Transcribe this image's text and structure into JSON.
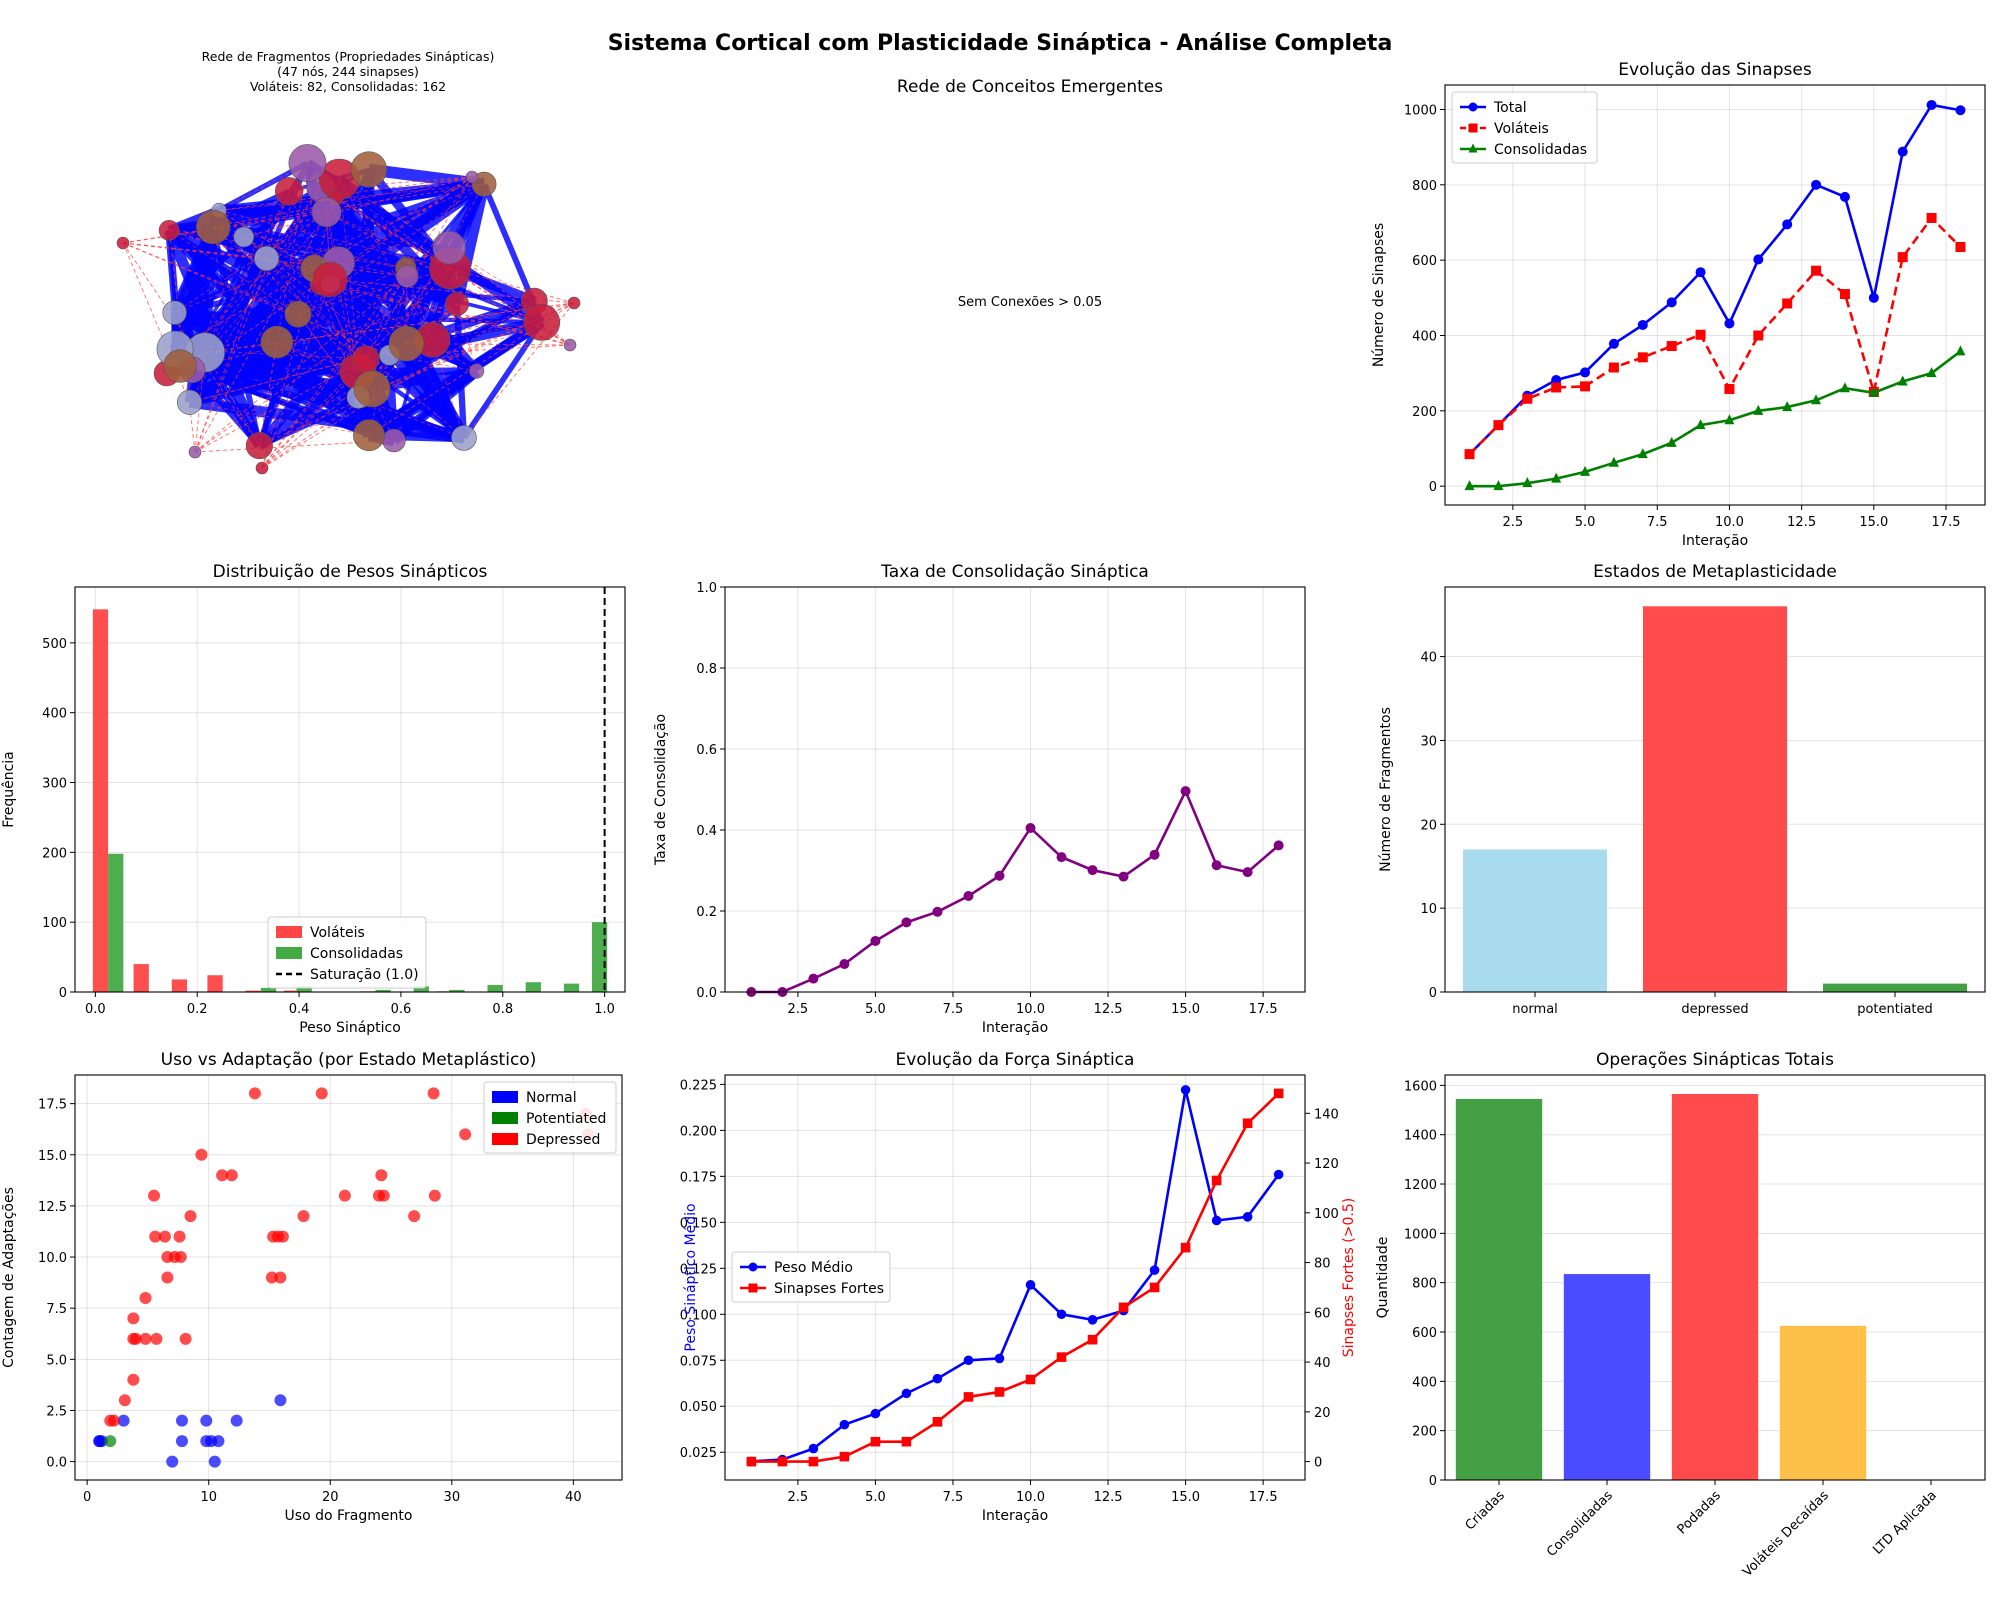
{
  "figure": {
    "title": "Sistema Cortical com Plasticidade Sináptica - Análise Completa"
  },
  "network": {
    "title_line1": "Rede de Fragmentos (Propriedades Sinápticas)",
    "title_line2": "(47 nós, 244 sinapses)",
    "title_line3": "Voláteis: 82, Consolidadas: 162",
    "colors": {
      "strong_edge": "#0000ff",
      "weak_edge": "#ff3b3b"
    }
  },
  "concepts": {
    "title": "Rede de Conceitos Emergentes",
    "message": "Sem Conexões > 0.05"
  },
  "chart_data": [
    {
      "id": "synapse_evolution",
      "type": "line",
      "title": "Evolução das Sinapses",
      "xlabel": "Interação",
      "ylabel": "Número de Sinapses",
      "xlim": [
        0.15,
        18.85
      ],
      "ylim": [
        -50,
        1065
      ],
      "xticks": [
        2.5,
        5.0,
        7.5,
        10.0,
        12.5,
        15.0,
        17.5
      ],
      "yticks": [
        0,
        200,
        400,
        600,
        800,
        1000
      ],
      "legend_position": "upper-left",
      "x": [
        1,
        2,
        3,
        4,
        5,
        6,
        7,
        8,
        9,
        10,
        11,
        12,
        13,
        14,
        15,
        16,
        17,
        18
      ],
      "series": [
        {
          "name": "Total",
          "color": "#0000ff",
          "marker": "circle",
          "dash": "solid",
          "values": [
            85,
            162,
            240,
            282,
            302,
            378,
            428,
            488,
            568,
            432,
            602,
            695,
            800,
            768,
            500,
            888,
            1012,
            998
          ]
        },
        {
          "name": "Voláteis",
          "color": "#ff0000",
          "marker": "square",
          "dash": "dashed",
          "values": [
            85,
            162,
            232,
            262,
            265,
            315,
            342,
            372,
            402,
            258,
            400,
            485,
            572,
            510,
            250,
            608,
            712,
            635
          ]
        },
        {
          "name": "Consolidadas",
          "color": "#008000",
          "marker": "triangle",
          "dash": "solid",
          "values": [
            0,
            0,
            8,
            20,
            38,
            62,
            85,
            115,
            162,
            175,
            200,
            210,
            228,
            260,
            248,
            278,
            300,
            358
          ]
        }
      ]
    },
    {
      "id": "weight_distribution",
      "type": "bar",
      "title": "Distribuição de Pesos Sinápticos",
      "xlabel": "Peso Sináptico",
      "ylabel": "Frequência",
      "xlim": [
        -0.04,
        1.04
      ],
      "ylim": [
        0,
        580
      ],
      "xticks": [
        0.0,
        0.2,
        0.4,
        0.6,
        0.8,
        1.0
      ],
      "yticks": [
        0,
        100,
        200,
        300,
        400,
        500
      ],
      "bin_width": 0.03,
      "legend_position": "lower-center",
      "series": [
        {
          "name": "Voláteis",
          "color": "#ff4444",
          "bins": [
            [
              0.01,
              548
            ],
            [
              0.09,
              40
            ],
            [
              0.165,
              18
            ],
            [
              0.235,
              24
            ],
            [
              0.31,
              2
            ],
            [
              0.385,
              2
            ],
            [
              0.535,
              1
            ],
            [
              0.685,
              1
            ]
          ]
        },
        {
          "name": "Consolidadas",
          "color": "#44aa44",
          "bins": [
            [
              0.04,
              198
            ],
            [
              0.34,
              6
            ],
            [
              0.41,
              8
            ],
            [
              0.565,
              3
            ],
            [
              0.64,
              8
            ],
            [
              0.71,
              3
            ],
            [
              0.785,
              10
            ],
            [
              0.86,
              14
            ],
            [
              0.935,
              12
            ],
            [
              0.99,
              100
            ]
          ]
        }
      ],
      "reference_line": {
        "name": "Saturação (1.0)",
        "x": 1.0
      }
    },
    {
      "id": "consolidation_rate",
      "type": "line",
      "title": "Taxa de Consolidação Sináptica",
      "xlabel": "Interação",
      "ylabel": "Taxa de Consolidação",
      "xlim": [
        0.15,
        18.85
      ],
      "ylim": [
        0,
        1.0
      ],
      "xticks": [
        2.5,
        5.0,
        7.5,
        10.0,
        12.5,
        15.0,
        17.5
      ],
      "yticks": [
        0.0,
        0.2,
        0.4,
        0.6,
        0.8,
        1.0
      ],
      "color": "#800080",
      "x": [
        1,
        2,
        3,
        4,
        5,
        6,
        7,
        8,
        9,
        10,
        11,
        12,
        13,
        14,
        15,
        16,
        17,
        18
      ],
      "values": [
        0.0,
        0.0,
        0.033,
        0.069,
        0.126,
        0.172,
        0.198,
        0.237,
        0.287,
        0.405,
        0.333,
        0.301,
        0.285,
        0.339,
        0.496,
        0.313,
        0.296,
        0.362
      ]
    },
    {
      "id": "metaplasticity_states",
      "type": "bar",
      "title": "Estados de Metaplasticidade",
      "xlabel": "",
      "ylabel": "Número de Fragmentos",
      "ylim": [
        0,
        48.3
      ],
      "yticks": [
        0,
        10,
        20,
        30,
        40
      ],
      "categories": [
        "normal",
        "depressed",
        "potentiated"
      ],
      "values": [
        17,
        46,
        1
      ],
      "colors": [
        "#a9dbee",
        "#ff4b4b",
        "#44a044"
      ]
    },
    {
      "id": "usage_vs_adaptation",
      "type": "scatter",
      "title": "Uso vs Adaptação (por Estado Metaplástico)",
      "xlabel": "Uso do Fragmento",
      "ylabel": "Contagem de Adaptações",
      "xlim": [
        -1.0,
        44.0
      ],
      "ylim": [
        -0.9,
        18.9
      ],
      "xticks": [
        0,
        10,
        20,
        30,
        40
      ],
      "yticks": [
        0.0,
        2.5,
        5.0,
        7.5,
        10.0,
        12.5,
        15.0,
        17.5
      ],
      "legend_position": "upper-right",
      "series": [
        {
          "name": "Normal",
          "color": "#0000ff",
          "points": [
            [
              1,
              1
            ],
            [
              1,
              1
            ],
            [
              1.2,
              1
            ],
            [
              3,
              2
            ],
            [
              7,
              0
            ],
            [
              7.8,
              2
            ],
            [
              7.8,
              1
            ],
            [
              9.8,
              1
            ],
            [
              9.8,
              2
            ],
            [
              10.2,
              1
            ],
            [
              10.5,
              0
            ],
            [
              10.8,
              1
            ],
            [
              12.3,
              2
            ],
            [
              15.9,
              3
            ]
          ]
        },
        {
          "name": "Potentiated",
          "color": "#008000",
          "points": [
            [
              1.9,
              1
            ]
          ]
        },
        {
          "name": "Depressed",
          "color": "#ff0000",
          "points": [
            [
              1.9,
              2
            ],
            [
              2.2,
              2
            ],
            [
              3.1,
              3
            ],
            [
              3.8,
              4
            ],
            [
              3.8,
              6
            ],
            [
              3.8,
              7
            ],
            [
              4,
              6
            ],
            [
              4.8,
              8
            ],
            [
              4.8,
              6
            ],
            [
              5.5,
              13
            ],
            [
              5.6,
              11
            ],
            [
              5.7,
              6
            ],
            [
              6.4,
              11
            ],
            [
              6.6,
              9
            ],
            [
              6.6,
              10
            ],
            [
              7.2,
              10
            ],
            [
              7.6,
              11
            ],
            [
              7.7,
              10
            ],
            [
              8.1,
              6
            ],
            [
              8.5,
              12
            ],
            [
              9.4,
              15
            ],
            [
              11.1,
              14
            ],
            [
              11.9,
              14
            ],
            [
              13.8,
              18
            ],
            [
              15.2,
              9
            ],
            [
              15.3,
              11
            ],
            [
              15.7,
              11
            ],
            [
              15.9,
              9
            ],
            [
              16.1,
              11
            ],
            [
              17.8,
              12
            ],
            [
              19.3,
              18
            ],
            [
              21.2,
              13
            ],
            [
              24,
              13
            ],
            [
              24.2,
              14
            ],
            [
              24.4,
              13
            ],
            [
              26.9,
              12
            ],
            [
              28.5,
              18
            ],
            [
              28.6,
              13
            ],
            [
              31.1,
              16
            ],
            [
              41,
              17
            ],
            [
              41.2,
              16
            ]
          ]
        }
      ]
    },
    {
      "id": "synaptic_strength_evolution",
      "type": "line",
      "title": "Evolução da Força Sináptica",
      "xlabel": "Interação",
      "ylabel": "Peso Sináptico Médio",
      "ylabel_right": "Sinapses Fortes (>0.5)",
      "xlim": [
        0.15,
        18.85
      ],
      "ylim": [
        0.0099,
        0.2301
      ],
      "ylim_right": [
        -7.4,
        155.4
      ],
      "xticks": [
        2.5,
        5.0,
        7.5,
        10.0,
        12.5,
        15.0,
        17.5
      ],
      "yticks": [
        0.025,
        0.05,
        0.075,
        0.1,
        0.125,
        0.15,
        0.175,
        0.2,
        0.225
      ],
      "yticks_right": [
        0,
        20,
        40,
        60,
        80,
        100,
        120,
        140
      ],
      "legend_position": "center-left",
      "x": [
        1,
        2,
        3,
        4,
        5,
        6,
        7,
        8,
        9,
        10,
        11,
        12,
        13,
        14,
        15,
        16,
        17,
        18
      ],
      "series": [
        {
          "name": "Peso Médio",
          "color": "#0000ff",
          "marker": "circle",
          "axis": "left",
          "values": [
            0.02,
            0.021,
            0.027,
            0.04,
            0.046,
            0.057,
            0.065,
            0.075,
            0.076,
            0.116,
            0.1,
            0.097,
            0.102,
            0.124,
            0.222,
            0.151,
            0.153,
            0.176
          ]
        },
        {
          "name": "Sinapses Fortes",
          "color": "#ff0000",
          "marker": "square",
          "axis": "right",
          "values": [
            0,
            0,
            0,
            2,
            8,
            8,
            16,
            26,
            28,
            33,
            42,
            49,
            62,
            70,
            86,
            113,
            136,
            148
          ]
        }
      ]
    },
    {
      "id": "synaptic_operations",
      "type": "bar",
      "title": "Operações Sinápticas Totais",
      "xlabel": "",
      "ylabel": "Quantidade",
      "ylim": [
        0,
        1642
      ],
      "yticks": [
        0,
        200,
        400,
        600,
        800,
        1000,
        1200,
        1400,
        1600
      ],
      "categories": [
        "Criadas",
        "Consolidadas",
        "Podadas",
        "Voláteis Decaídas",
        "LTD Aplicada"
      ],
      "values": [
        1545,
        835,
        1565,
        625,
        0
      ],
      "colors": [
        "#44a044",
        "#4b4bff",
        "#ff4b4b",
        "#ffc04a",
        "#aaaaaa"
      ]
    }
  ]
}
